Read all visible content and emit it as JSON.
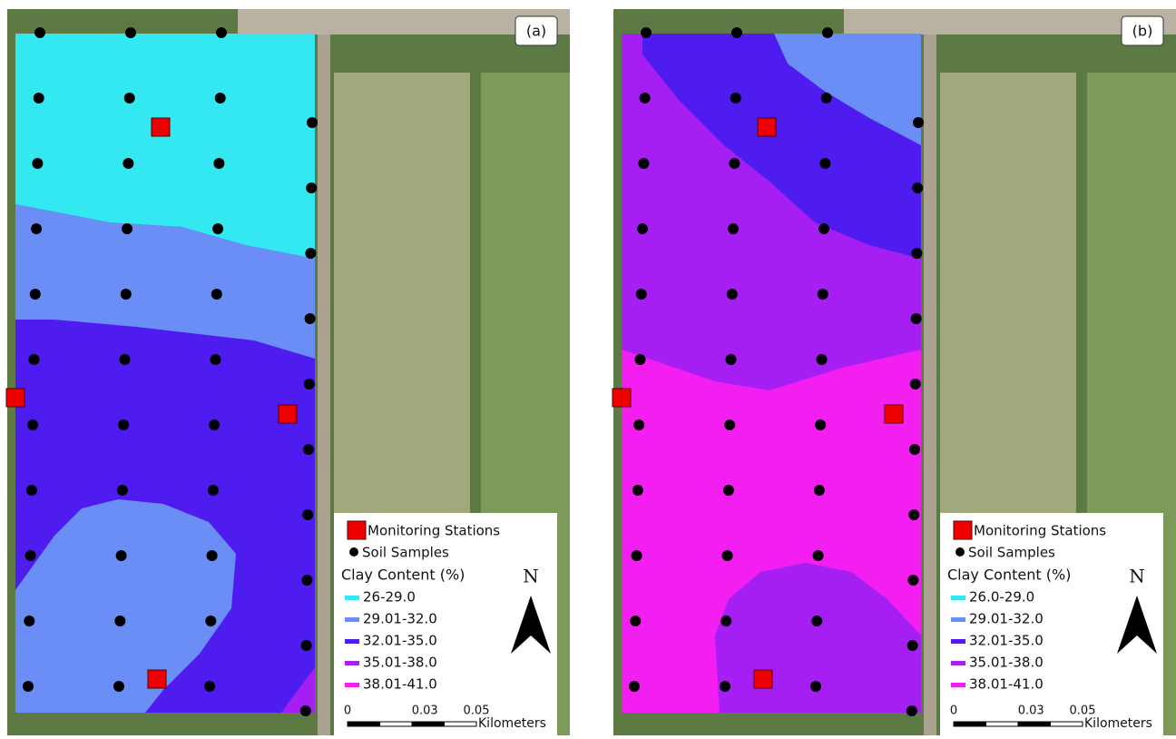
{
  "panels": [
    {
      "label": "(a)",
      "legend": {
        "stations": "Monitoring Stations",
        "samples": "Soil Samples",
        "title": "Clay Content (%)",
        "classes": [
          {
            "label": "26-29.0",
            "color": "#33e8f0"
          },
          {
            "label": "29.01-32.0",
            "color": "#6a8ef5"
          },
          {
            "label": "32.01-35.0",
            "color": "#4f1cef"
          },
          {
            "label": "35.01-38.0",
            "color": "#a51ff2"
          },
          {
            "label": "38.01-41.0",
            "color": "#f21ff0"
          }
        ]
      },
      "north": "N",
      "scale": {
        "ticks": [
          0,
          0.03,
          0.05
        ],
        "unit": "Kilometers"
      }
    },
    {
      "label": "(b)",
      "legend": {
        "stations": "Monitoring Stations",
        "samples": "Soil Samples",
        "title": "Clay Content (%)",
        "classes": [
          {
            "label": "26.0-29.0",
            "color": "#33e8f0"
          },
          {
            "label": "29.01-32.0",
            "color": "#6a8ef5"
          },
          {
            "label": "32.01-35.0",
            "color": "#4f1cef"
          },
          {
            "label": "35.01-38.0",
            "color": "#a51ff2"
          },
          {
            "label": "38.01-41.0",
            "color": "#f21ff0"
          }
        ]
      },
      "north": "N",
      "scale": {
        "ticks": [
          0,
          0.03,
          0.05
        ],
        "unit": "Kilometers"
      }
    }
  ]
}
